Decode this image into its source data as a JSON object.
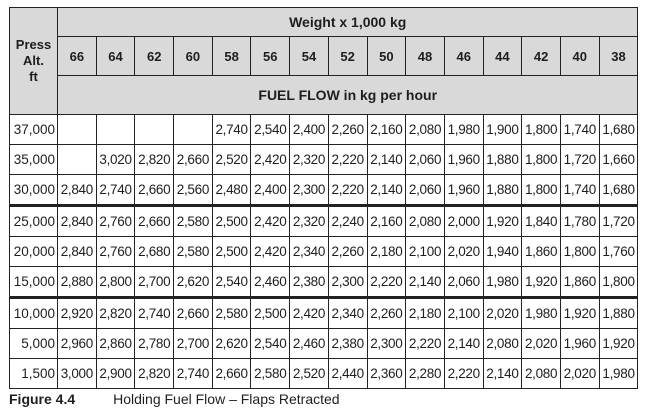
{
  "header": {
    "alt_label_line1": "Press",
    "alt_label_line2": "Alt.",
    "alt_label_line3": "ft",
    "weight_title": "Weight x 1,000 kg",
    "flow_title": "FUEL FLOW in kg per hour",
    "weights": [
      "66",
      "64",
      "62",
      "60",
      "58",
      "56",
      "54",
      "52",
      "50",
      "48",
      "46",
      "44",
      "42",
      "40",
      "38"
    ]
  },
  "rows": [
    {
      "alt": "37,000",
      "values": [
        "",
        "",
        "",
        "",
        "2,740",
        "2,540",
        "2,400",
        "2,260",
        "2,160",
        "2,080",
        "1,980",
        "1,900",
        "1,800",
        "1,740",
        "1,680"
      ]
    },
    {
      "alt": "35,000",
      "values": [
        "",
        "3,020",
        "2,820",
        "2,660",
        "2,520",
        "2,420",
        "2,320",
        "2,220",
        "2,140",
        "2,060",
        "1,960",
        "1,880",
        "1,800",
        "1,720",
        "1,660"
      ]
    },
    {
      "alt": "30,000",
      "values": [
        "2,840",
        "2,740",
        "2,660",
        "2,560",
        "2,480",
        "2,400",
        "2,300",
        "2,220",
        "2,140",
        "2,060",
        "1,960",
        "1,880",
        "1,800",
        "1,740",
        "1,680"
      ]
    },
    {
      "alt": "25,000",
      "values": [
        "2,840",
        "2,760",
        "2,660",
        "2,580",
        "2,500",
        "2,420",
        "2,320",
        "2,240",
        "2,160",
        "2,080",
        "2,000",
        "1,920",
        "1,840",
        "1,780",
        "1,720"
      ]
    },
    {
      "alt": "20,000",
      "values": [
        "2,840",
        "2,760",
        "2,680",
        "2,580",
        "2,500",
        "2,420",
        "2,340",
        "2,260",
        "2,180",
        "2,100",
        "2,020",
        "1,940",
        "1,860",
        "1,800",
        "1,760"
      ]
    },
    {
      "alt": "15,000",
      "values": [
        "2,880",
        "2,800",
        "2,700",
        "2,620",
        "2,540",
        "2,460",
        "2,380",
        "2,300",
        "2,220",
        "2,140",
        "2,060",
        "1,980",
        "1,920",
        "1,860",
        "1,800"
      ]
    },
    {
      "alt": "10,000",
      "values": [
        "2,920",
        "2,820",
        "2,740",
        "2,660",
        "2,580",
        "2,500",
        "2,420",
        "2,340",
        "2,260",
        "2,180",
        "2,100",
        "2,020",
        "1,980",
        "1,920",
        "1,880"
      ]
    },
    {
      "alt": "5,000",
      "values": [
        "2,960",
        "2,860",
        "2,780",
        "2,700",
        "2,620",
        "2,540",
        "2,460",
        "2,380",
        "2,300",
        "2,220",
        "2,140",
        "2,080",
        "2,020",
        "1,960",
        "1,920"
      ]
    },
    {
      "alt": "1,500",
      "values": [
        "3,000",
        "2,900",
        "2,820",
        "2,740",
        "2,660",
        "2,580",
        "2,520",
        "2,440",
        "2,360",
        "2,280",
        "2,220",
        "2,140",
        "2,080",
        "2,020",
        "1,980"
      ]
    }
  ],
  "caption": {
    "figure": "Figure 4.4",
    "title": "Holding Fuel Flow – Flaps Retracted"
  }
}
